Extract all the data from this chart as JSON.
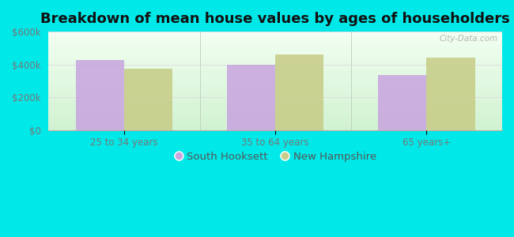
{
  "title": "Breakdown of mean house values by ages of householders",
  "categories": [
    "25 to 34 years",
    "35 to 64 years",
    "65 years+"
  ],
  "series": {
    "South Hooksett": [
      425000,
      400000,
      335000
    ],
    "New Hampshire": [
      375000,
      460000,
      440000
    ]
  },
  "bar_colors": {
    "South Hooksett": "#c9a8e0",
    "New Hampshire": "#c8ce8a"
  },
  "ylim": [
    0,
    600000
  ],
  "yticks": [
    0,
    200000,
    400000,
    600000
  ],
  "ytick_labels": [
    "$0",
    "$200k",
    "$400k",
    "$600k"
  ],
  "background_color": "#00e8e8",
  "title_fontsize": 13,
  "legend_fontsize": 9.5,
  "tick_fontsize": 8.5,
  "bar_width": 0.32,
  "watermark": "City-Data.com"
}
